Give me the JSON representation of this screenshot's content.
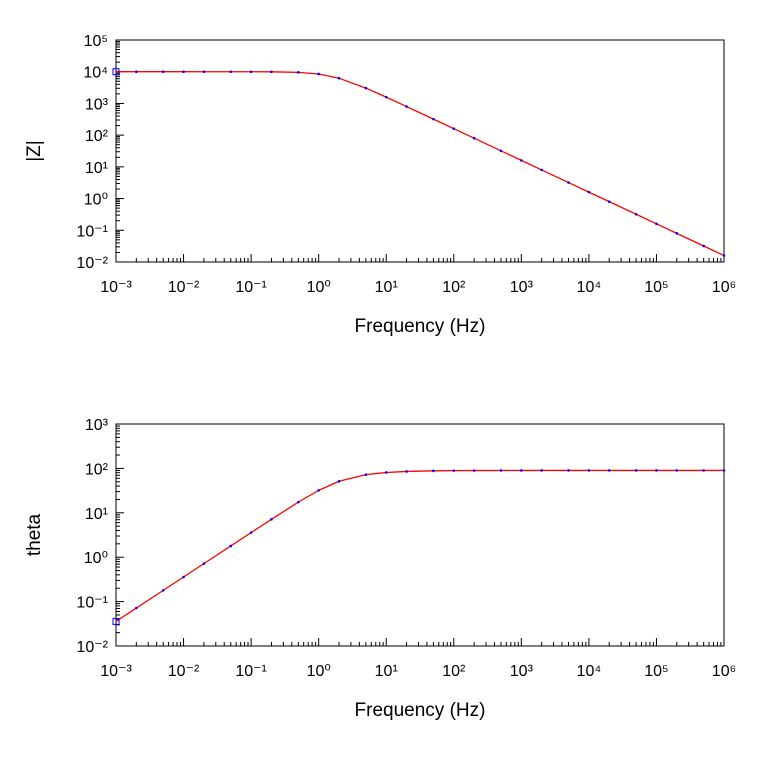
{
  "chart_data": [
    {
      "type": "line",
      "x_label": "Frequency (Hz)",
      "y_label": "|Z|",
      "xlog": true,
      "ylog": true,
      "minor_ticks": true,
      "x": [
        0.001,
        0.002,
        0.005,
        0.01,
        0.02,
        0.05,
        0.1,
        0.2,
        0.5,
        1,
        2,
        5,
        10,
        20,
        50,
        100,
        200,
        500,
        1000,
        2000,
        5000,
        10000,
        20000,
        50000,
        100000,
        200000,
        500000,
        1000000
      ],
      "series": [
        {
          "color": "#ff0000",
          "marker_color": "#0000ff",
          "values": [
            10000,
            10000,
            10000,
            10000,
            9999,
            9995,
            9980,
            9922,
            9545,
            8480,
            6247,
            3048,
            1580,
            797,
            320,
            160,
            80,
            32,
            16,
            8,
            3.2,
            1.6,
            0.8,
            0.32,
            0.16,
            0.08,
            0.032,
            0.016
          ]
        }
      ],
      "xlim": [
        0.001,
        1000000
      ],
      "xticks": [
        {
          "value": 0.001,
          "label": "10⁻³"
        },
        {
          "value": 0.01,
          "label": "10⁻²"
        },
        {
          "value": 0.1,
          "label": "10⁻¹"
        },
        {
          "value": 1,
          "label": "10⁰"
        },
        {
          "value": 10,
          "label": "10¹"
        },
        {
          "value": 100,
          "label": "10²"
        },
        {
          "value": 1000,
          "label": "10³"
        },
        {
          "value": 10000,
          "label": "10⁴"
        },
        {
          "value": 100000,
          "label": "10⁵"
        },
        {
          "value": 1000000,
          "label": "10⁶"
        }
      ],
      "ylim": [
        0.01,
        100000
      ],
      "yticks": [
        {
          "value": 0.01,
          "label": "10⁻²"
        },
        {
          "value": 0.1,
          "label": "10⁻¹"
        },
        {
          "value": 1,
          "label": "10⁰"
        },
        {
          "value": 10,
          "label": "10¹"
        },
        {
          "value": 100,
          "label": "10²"
        },
        {
          "value": 1000,
          "label": "10³"
        },
        {
          "value": 10000,
          "label": "10⁴"
        },
        {
          "value": 100000,
          "label": "10⁵"
        }
      ]
    },
    {
      "type": "line",
      "x_label": "Frequency (Hz)",
      "y_label": "theta",
      "xlog": true,
      "ylog": true,
      "minor_ticks": true,
      "x": [
        0.001,
        0.002,
        0.005,
        0.01,
        0.02,
        0.05,
        0.1,
        0.2,
        0.5,
        1,
        2,
        5,
        10,
        20,
        50,
        100,
        200,
        500,
        1000,
        2000,
        5000,
        10000,
        20000,
        50000,
        100000,
        200000,
        500000,
        1000000
      ],
      "series": [
        {
          "color": "#ff0000",
          "marker_color": "#0000ff",
          "values": [
            0.0358,
            0.0716,
            0.179,
            0.358,
            0.716,
            1.79,
            3.58,
            7.13,
            17.4,
            32.0,
            51.3,
            72.3,
            80.9,
            85.4,
            88.2,
            89.1,
            89.5,
            89.8,
            89.9,
            90,
            90,
            90,
            90,
            90,
            90,
            90,
            90,
            90
          ]
        }
      ],
      "xlim": [
        0.001,
        1000000
      ],
      "xticks": [
        {
          "value": 0.001,
          "label": "10⁻³"
        },
        {
          "value": 0.01,
          "label": "10⁻²"
        },
        {
          "value": 0.1,
          "label": "10⁻¹"
        },
        {
          "value": 1,
          "label": "10⁰"
        },
        {
          "value": 10,
          "label": "10¹"
        },
        {
          "value": 100,
          "label": "10²"
        },
        {
          "value": 1000,
          "label": "10³"
        },
        {
          "value": 10000,
          "label": "10⁴"
        },
        {
          "value": 100000,
          "label": "10⁵"
        },
        {
          "value": 1000000,
          "label": "10⁶"
        }
      ],
      "ylim": [
        0.01,
        1000
      ],
      "yticks": [
        {
          "value": 0.01,
          "label": "10⁻²"
        },
        {
          "value": 0.1,
          "label": "10⁻¹"
        },
        {
          "value": 1,
          "label": "10⁰"
        },
        {
          "value": 10,
          "label": "10¹"
        },
        {
          "value": 100,
          "label": "10²"
        },
        {
          "value": 1000,
          "label": "10³"
        }
      ]
    }
  ]
}
